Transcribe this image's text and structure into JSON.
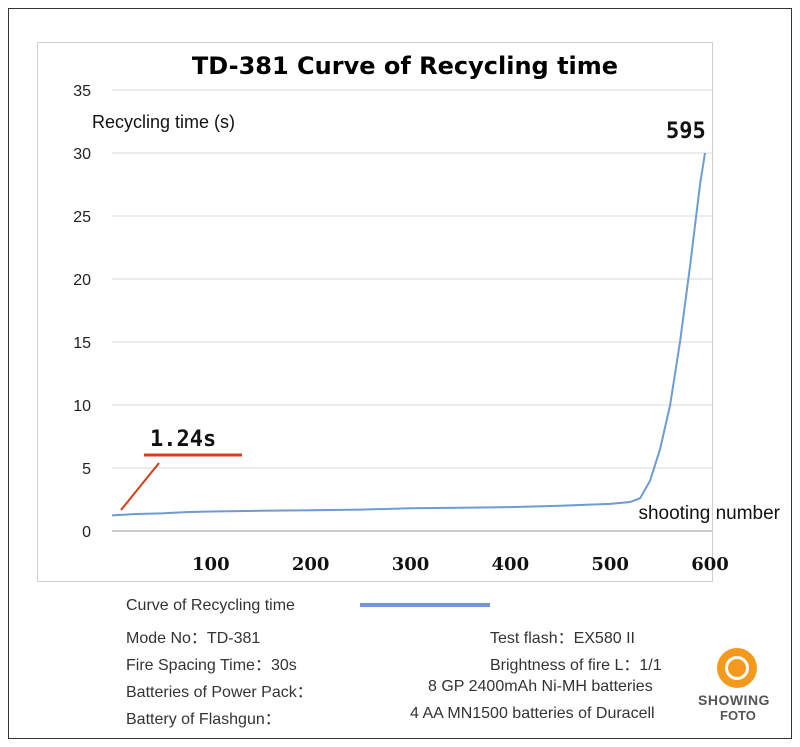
{
  "chart_data": {
    "type": "line",
    "title": "TD-381 Curve of Recycling time",
    "ylabel": "Recycling time (s)",
    "xlabel": "shooting number",
    "ylim": [
      0,
      35
    ],
    "yticks": [
      0,
      5,
      10,
      15,
      20,
      25,
      30,
      35
    ],
    "xticks": [
      100,
      200,
      300,
      400,
      500,
      600
    ],
    "grid": true,
    "series": [
      {
        "name": "Curve of Recycling time",
        "color": "#6e9bd2",
        "x": [
          1,
          25,
          50,
          75,
          100,
          150,
          200,
          250,
          300,
          350,
          400,
          450,
          500,
          520,
          530,
          540,
          550,
          560,
          570,
          580,
          590,
          595
        ],
        "y": [
          1.24,
          1.35,
          1.4,
          1.5,
          1.55,
          1.6,
          1.65,
          1.7,
          1.8,
          1.85,
          1.9,
          2.0,
          2.15,
          2.3,
          2.6,
          4.0,
          6.5,
          10.0,
          15.0,
          21.0,
          27.5,
          30.0
        ]
      }
    ],
    "annotations": {
      "start_value": "1.24s",
      "end_value": "595",
      "marker_color": "#d13f1a"
    }
  },
  "legend": {
    "label": "Curve of Recycling time"
  },
  "info": {
    "mode_no": "Mode No：TD-381",
    "test_flash": "Test flash：EX580 II",
    "fire_spacing": "Fire Spacing Time：30s",
    "brightness": "Brightness of fire L：1/1",
    "batteries_pack_label": "Batteries of Power Pack：",
    "batteries_pack_value": "8 GP 2400mAh Ni-MH batteries",
    "battery_flash_label": "Battery of Flashgun：",
    "battery_flash_value": "4 AA MN1500 batteries of Duracell"
  },
  "logo": {
    "line1": "SHOWING",
    "line2": "FOTO",
    "color": "#f39a1e"
  }
}
